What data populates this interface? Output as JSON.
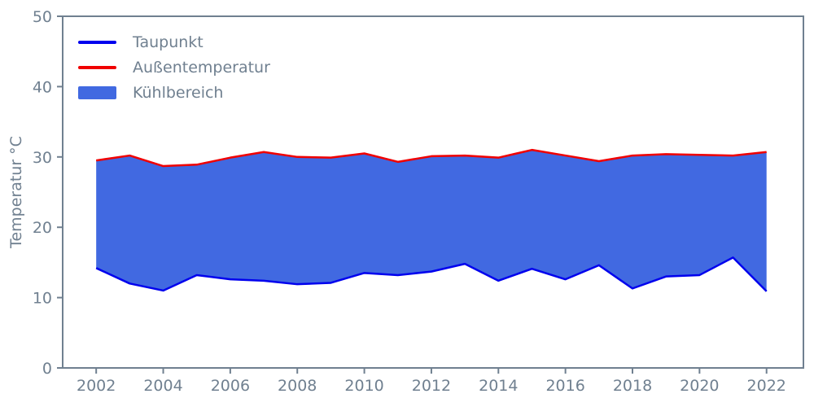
{
  "chart_data": {
    "type": "area",
    "title": "",
    "xlabel": "",
    "ylabel": "Temperatur °C",
    "x": [
      2002,
      2003,
      2004,
      2005,
      2006,
      2007,
      2008,
      2009,
      2010,
      2011,
      2012,
      2013,
      2014,
      2015,
      2016,
      2017,
      2018,
      2019,
      2020,
      2021,
      2022
    ],
    "series": [
      {
        "name": "Taupunkt",
        "color": "#0000ee",
        "values": [
          14.2,
          12.0,
          11.0,
          13.2,
          12.6,
          12.4,
          11.9,
          12.1,
          13.5,
          13.2,
          13.7,
          14.8,
          12.4,
          14.1,
          12.6,
          14.6,
          11.3,
          13.0,
          13.2,
          15.7,
          10.9
        ]
      },
      {
        "name": "Außentemperatur",
        "color": "#f00000",
        "values": [
          29.5,
          30.2,
          28.7,
          28.9,
          29.9,
          30.7,
          30.0,
          29.9,
          30.5,
          29.3,
          30.1,
          30.2,
          29.9,
          31.0,
          30.2,
          29.4,
          30.2,
          30.4,
          30.3,
          30.2,
          30.7
        ]
      }
    ],
    "fill_between": {
      "name": "Kühlbereich",
      "color": "#4169e1",
      "lower": "Taupunkt",
      "upper": "Außentemperatur"
    },
    "xlim": [
      2001,
      2023.1
    ],
    "ylim": [
      0,
      50
    ],
    "x_ticks": [
      2002,
      2004,
      2006,
      2008,
      2010,
      2012,
      2014,
      2016,
      2018,
      2020,
      2022
    ],
    "y_ticks": [
      0,
      10,
      20,
      30,
      40,
      50
    ],
    "grid": false,
    "legend_position": "upper-left",
    "axis_color": "#708090",
    "line_width": 2.5
  },
  "legend": {
    "items": [
      {
        "label": "Taupunkt",
        "type": "line",
        "color": "#0000ee"
      },
      {
        "label": "Außentemperatur",
        "type": "line",
        "color": "#f00000"
      },
      {
        "label": "Kühlbereich",
        "type": "patch",
        "color": "#4169e1"
      }
    ]
  }
}
